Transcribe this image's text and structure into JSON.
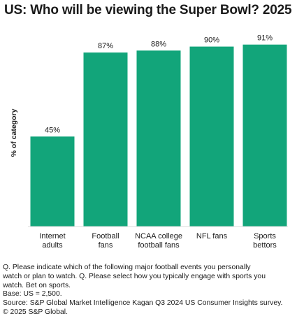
{
  "chart_data": {
    "type": "bar",
    "title": "US: Who will be viewing the Super Bowl? 2025",
    "ylabel": "% of category",
    "ylim": [
      0,
      100
    ],
    "grid": false,
    "categories": [
      [
        "Internet",
        "adults"
      ],
      [
        "Football",
        "fans"
      ],
      [
        "NCAA college",
        "football fans"
      ],
      [
        "NFL fans"
      ],
      [
        "Sports",
        "bettors"
      ]
    ],
    "values": [
      45,
      87,
      88,
      90,
      91
    ],
    "value_labels": [
      "45%",
      "87%",
      "88%",
      "90%",
      "91%"
    ],
    "bar_color": "#12a57a"
  },
  "notes": [
    "Q. Please indicate which of the following major football events you personally",
    "watch or plan to watch. Q. Please select how you typically engage with sports you",
    "watch. Bet on sports.",
    "Base: US = 2,500.",
    "Source: S&P Global Market Intelligence Kagan Q3 2024 US Consumer Insights survey.",
    "© 2025 S&P Global."
  ]
}
